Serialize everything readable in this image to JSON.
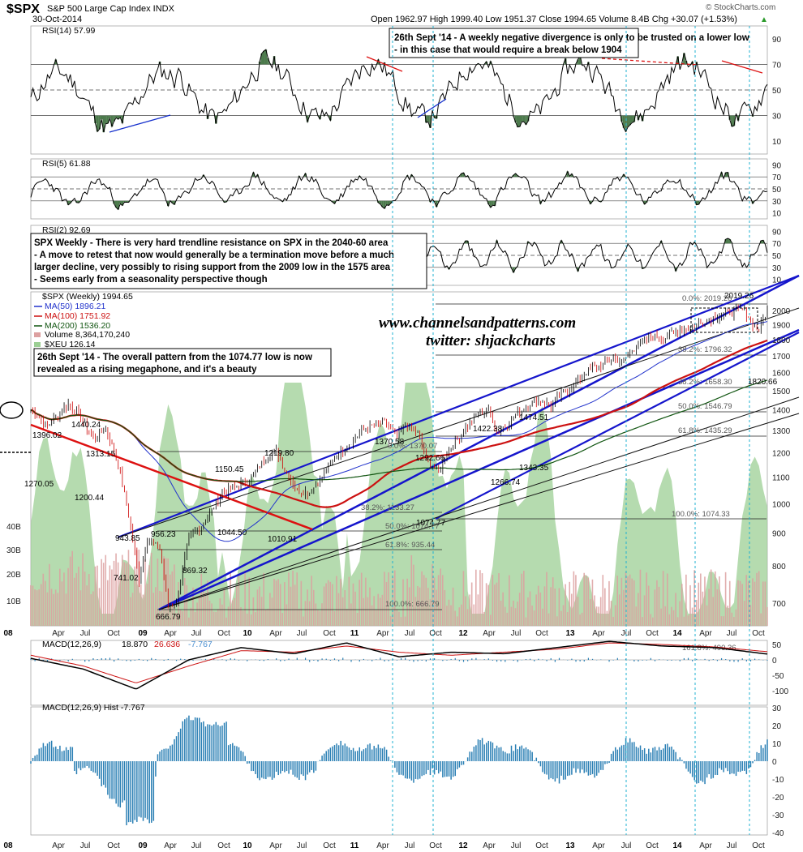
{
  "header": {
    "symbol": "$SPX",
    "name": "S&P 500 Large Cap Index INDX",
    "date": "30-Oct-2014",
    "ohlc": "Open 1962.97  High 1999.40  Low 1951.37  Close 1994.65  Volume 8.4B  Chg +30.07 (+1.53%)",
    "chg_arrow": "▲",
    "copyright": "© StockCharts.com"
  },
  "annotations": {
    "rsi_note_line1": "26th Sept '14 - A weekly negative divergence is only to be trusted on a lower low",
    "rsi_note_line2": "- in this case that would require a break below 1904",
    "spx_note_line1": "SPX Weekly - There is very hard trendline resistance on SPX in the 2040-60 area",
    "spx_note_line2": "- A move to retest that now would generally be a termination move before a much",
    "spx_note_line3": "larger decline, very possibly to rising support from the 2009 low in the 1575 area",
    "spx_note_line4": "- Seems early from a seasonality perspective though",
    "megaphone_line1": "26th Sept '14 - The overall pattern from the 1074.77 low is now",
    "megaphone_line2": "revealed as a rising megaphone, and it's a beauty",
    "watermark_line1": "www.channelsandpatterns.com",
    "watermark_line2": "twitter: shjackcharts"
  },
  "legend": {
    "spx": "$SPX (Weekly) 1994.65",
    "ma50": "MA(50) 1896.21",
    "ma100": "MA(100) 1751.92",
    "ma200": "MA(200) 1536.20",
    "volume": "Volume 8,364,170,240",
    "xeu": "$XEU 126.14"
  },
  "panels": {
    "rsi14": "RSI(14) 57.99",
    "rsi5": "RSI(5) 61.88",
    "rsi2": "RSI(2) 92.69",
    "macd": "MACD(12,26,9)",
    "macd_vals": [
      "18.870",
      "26.636",
      "-7.767"
    ],
    "hist": "MACD(12,26,9) Hist -7.767"
  },
  "colors": {
    "price_up": "#000000",
    "price_down": "#cc0000",
    "ma50": "#2233cc",
    "ma100": "#cc1111",
    "ma200": "#115511",
    "volume": "#dca0a0",
    "xeu_area": "#9ccf94",
    "trendline": "#1515cc",
    "downtrend": "#d11",
    "hist": "#2a7fb4",
    "fill_osc": "#4c7a4c"
  },
  "axes": {
    "price_ticks": [
      "2000",
      "1900",
      "1800",
      "1700",
      "1600",
      "1500",
      "1400",
      "1300",
      "1200",
      "1100",
      "1000",
      "900",
      "800",
      "700"
    ],
    "volume_ticks": [
      "40B",
      "30B",
      "20B",
      "10B"
    ],
    "rsi14_ticks": [
      "90",
      "70",
      "50",
      "30",
      "10"
    ],
    "rsi5_ticks": [
      "90",
      "70",
      "50",
      "30",
      "10"
    ],
    "rsi2_ticks": [
      "90",
      "70",
      "50",
      "30",
      "10"
    ],
    "macd_ticks": [
      "50",
      "0",
      "-50",
      "-100"
    ],
    "hist_ticks": [
      "30",
      "20",
      "10",
      "0",
      "-10",
      "-20",
      "-30",
      "-40"
    ],
    "x_labels": [
      "08",
      "Apr",
      "Jul",
      "Oct",
      "09",
      "Apr",
      "Jul",
      "Oct",
      "10",
      "Apr",
      "Jul",
      "Oct",
      "11",
      "Apr",
      "Jul",
      "Oct",
      "12",
      "Apr",
      "Jul",
      "Oct",
      "13",
      "Apr",
      "Jul",
      "Oct",
      "14",
      "Apr",
      "Jul",
      "Oct"
    ]
  },
  "price_labels": [
    "1440.24",
    "1396.02",
    "1313.15",
    "1270.05",
    "1200.44",
    "943.85",
    "956.23",
    "869.32",
    "741.02",
    "666.79",
    "1150.45",
    "1219.80",
    "1044.50",
    "1010.91",
    "1370.58",
    "1292.66",
    "1074.77",
    "1422.38",
    "1474.51",
    "1266.74",
    "1343.35",
    "2019.26",
    "1820.66"
  ],
  "fib_levels": [
    "0.0%: 2019.26",
    "38.2%: 1796.32",
    "38.2%: 1658.30",
    "50.0%: 1546.79",
    "61.8%: 1435.29",
    "100.0%: 1074.33",
    "0.0%: 1370.07",
    "38.2%: 1133.27",
    "50.0%: 1074.77",
    "61.8%: 935.44",
    "100.0%: 666.79",
    "161.8%: 490.36"
  ],
  "chart_data": [
    {
      "type": "candlestick",
      "title": "$SPX (Weekly)",
      "x": [
        "2008-01",
        "2008-04",
        "2008-07",
        "2008-10",
        "2009-01",
        "2009-03",
        "2009-06",
        "2009-10",
        "2010-01",
        "2010-04",
        "2010-07",
        "2010-10",
        "2011-01",
        "2011-04",
        "2011-07",
        "2011-10",
        "2012-01",
        "2012-04",
        "2012-06",
        "2012-10",
        "2013-01",
        "2013-04",
        "2013-07",
        "2013-10",
        "2014-01",
        "2014-04",
        "2014-07",
        "2014-10"
      ],
      "close": [
        1400,
        1390,
        1260,
        950,
        870,
        760,
        940,
        1060,
        1120,
        1190,
        1080,
        1170,
        1280,
        1340,
        1300,
        1160,
        1310,
        1400,
        1320,
        1430,
        1460,
        1590,
        1680,
        1740,
        1800,
        1880,
        1960,
        1994.65
      ],
      "ylim": [
        666,
        2060
      ],
      "log_scale": true
    },
    {
      "type": "line",
      "title": "RSI(14)",
      "x": [
        "2008-01",
        "2008-07",
        "2009-01",
        "2009-07",
        "2010-01",
        "2010-07",
        "2011-01",
        "2011-07",
        "2012-01",
        "2012-07",
        "2013-01",
        "2013-07",
        "2014-01",
        "2014-07",
        "2014-10"
      ],
      "values": [
        52,
        45,
        25,
        65,
        68,
        48,
        70,
        40,
        55,
        65,
        62,
        70,
        65,
        68,
        57.99
      ],
      "ylim": [
        0,
        100
      ]
    },
    {
      "type": "line",
      "title": "MACD(12,26,9)",
      "x": [
        "2008-01",
        "2008-07",
        "2009-01",
        "2009-07",
        "2010-01",
        "2010-07",
        "2011-01",
        "2011-07",
        "2012-01",
        "2012-07",
        "2013-01",
        "2013-07",
        "2014-01",
        "2014-07",
        "2014-10"
      ],
      "series": [
        {
          "name": "MACD",
          "values": [
            5,
            -30,
            -95,
            0,
            40,
            20,
            55,
            10,
            25,
            20,
            40,
            60,
            45,
            40,
            18.87
          ]
        },
        {
          "name": "Signal",
          "values": [
            15,
            -20,
            -75,
            -20,
            30,
            25,
            45,
            25,
            15,
            25,
            35,
            55,
            50,
            42,
            26.636
          ]
        }
      ],
      "ylim": [
        -110,
        60
      ]
    }
  ]
}
